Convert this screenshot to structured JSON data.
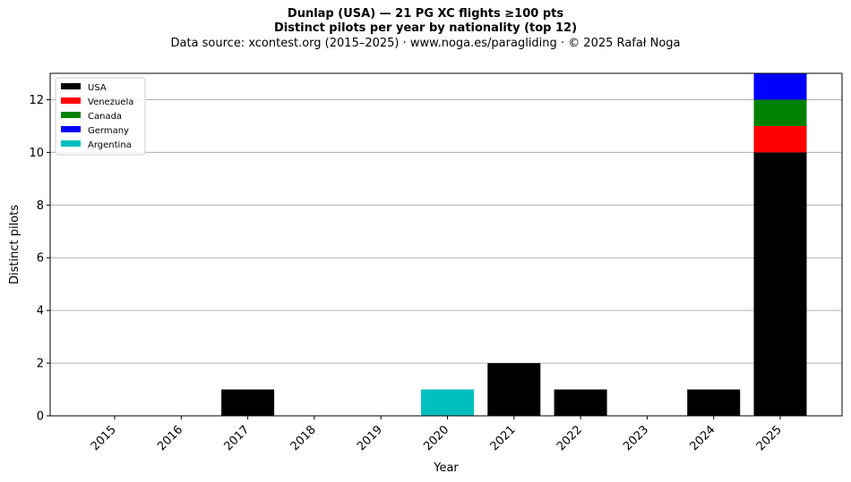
{
  "title_line1": "Dunlap (USA)  —  21 PG XC flights ≥100 pts",
  "title_line2": "Distinct pilots per year by nationality (top 12)",
  "title_line3": "Data source: xcontest.org (2015–2025)  ·  www.noga.es/paragliding  ·  © 2025 Rafał Noga",
  "colors": {
    "USA": "#000000",
    "Venezuela": "#ff0000",
    "Canada": "#008000",
    "Germany": "#0000ff",
    "Argentina": "#00bfbf"
  },
  "chart_data": {
    "type": "bar",
    "stacked": true,
    "categories": [
      "2015",
      "2016",
      "2017",
      "2018",
      "2019",
      "2020",
      "2021",
      "2022",
      "2023",
      "2024",
      "2025"
    ],
    "series": [
      {
        "name": "USA",
        "values": [
          0,
          0,
          1,
          0,
          0,
          0,
          2,
          1,
          0,
          1,
          10
        ]
      },
      {
        "name": "Venezuela",
        "values": [
          0,
          0,
          0,
          0,
          0,
          0,
          0,
          0,
          0,
          0,
          1
        ]
      },
      {
        "name": "Canada",
        "values": [
          0,
          0,
          0,
          0,
          0,
          0,
          0,
          0,
          0,
          0,
          1
        ]
      },
      {
        "name": "Germany",
        "values": [
          0,
          0,
          0,
          0,
          0,
          0,
          0,
          0,
          0,
          0,
          1
        ]
      },
      {
        "name": "Argentina",
        "values": [
          0,
          0,
          0,
          0,
          0,
          1,
          0,
          0,
          0,
          0,
          0
        ]
      }
    ],
    "xlabel": "Year",
    "ylabel": "Distinct pilots",
    "ylim": [
      0,
      13
    ],
    "yticks": [
      0,
      2,
      4,
      6,
      8,
      10,
      12
    ],
    "grid": "y",
    "legend": "top-left"
  }
}
